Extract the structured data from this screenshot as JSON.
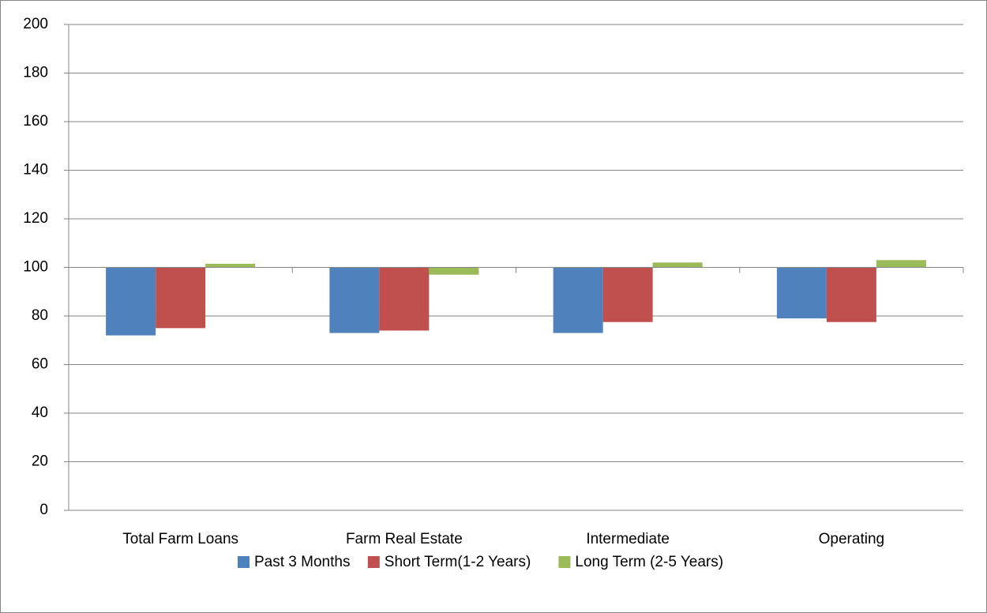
{
  "chart_data": {
    "type": "bar",
    "categories": [
      "Total Farm Loans",
      "Farm Real Estate",
      "Intermediate",
      "Operating"
    ],
    "series": [
      {
        "name": "Past 3 Months",
        "color": "#4f81bd",
        "values": [
          72,
          73,
          73,
          79
        ]
      },
      {
        "name": "Short Term(1-2 Years)",
        "color": "#c0504d",
        "values": [
          75,
          74,
          77.5,
          77.5
        ]
      },
      {
        "name": "Long Term (2-5 Years)",
        "color": "#9bbb59",
        "values": [
          101.5,
          97,
          102,
          103
        ]
      }
    ],
    "ylim": [
      0,
      200
    ],
    "yticks": [
      0,
      20,
      40,
      60,
      80,
      100,
      120,
      140,
      160,
      180,
      200
    ],
    "x_axis_crosses": 100,
    "grid": true,
    "legend": "bottom"
  }
}
